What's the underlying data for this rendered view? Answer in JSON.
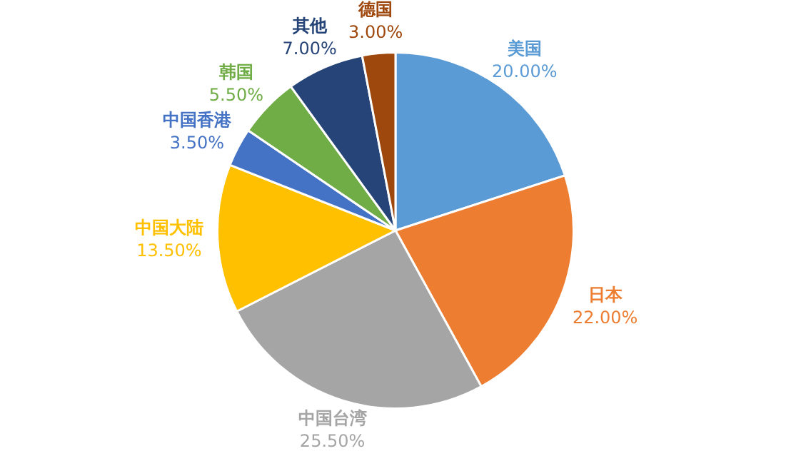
{
  "chart_data": {
    "type": "pie",
    "categories": [
      "美国",
      "日本",
      "中国台湾",
      "中国大陆",
      "中国香港",
      "韩国",
      "其他",
      "德国"
    ],
    "values": [
      20,
      22,
      25.5,
      13.5,
      3.5,
      5.5,
      7,
      3
    ],
    "value_labels": [
      "20.00%",
      "22.00%",
      "25.50%",
      "13.50%",
      "3.50%",
      "5.50%",
      "7.00%",
      "3.00%"
    ],
    "colors": [
      "#5b9bd5",
      "#ed7d31",
      "#a5a5a5",
      "#ffc000",
      "#4472c4",
      "#70ad47",
      "#264478",
      "#9e480e"
    ],
    "legend": false
  }
}
